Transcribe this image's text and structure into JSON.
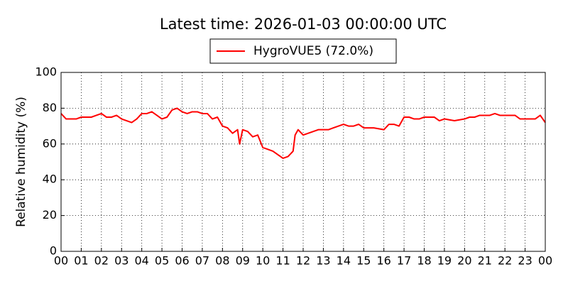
{
  "chart_data": {
    "type": "line",
    "title": "Latest time: 2026-01-03 00:00:00 UTC",
    "y_label": "Relative humidity (%)",
    "legend": "upper center",
    "grid": true,
    "xlim": [
      0,
      24
    ],
    "ylim": [
      0,
      100
    ],
    "yticks": [
      0,
      20,
      40,
      60,
      80,
      100
    ],
    "xticks": [
      {
        "value": 0,
        "label": "00"
      },
      {
        "value": 1,
        "label": "01"
      },
      {
        "value": 2,
        "label": "02"
      },
      {
        "value": 3,
        "label": "03"
      },
      {
        "value": 4,
        "label": "04"
      },
      {
        "value": 5,
        "label": "05"
      },
      {
        "value": 6,
        "label": "06"
      },
      {
        "value": 7,
        "label": "07"
      },
      {
        "value": 8,
        "label": "08"
      },
      {
        "value": 9,
        "label": "09"
      },
      {
        "value": 10,
        "label": "10"
      },
      {
        "value": 11,
        "label": "11"
      },
      {
        "value": 12,
        "label": "12"
      },
      {
        "value": 13,
        "label": "13"
      },
      {
        "value": 14,
        "label": "14"
      },
      {
        "value": 15,
        "label": "15"
      },
      {
        "value": 16,
        "label": "16"
      },
      {
        "value": 17,
        "label": "17"
      },
      {
        "value": 18,
        "label": "18"
      },
      {
        "value": 19,
        "label": "19"
      },
      {
        "value": 20,
        "label": "20"
      },
      {
        "value": 21,
        "label": "21"
      },
      {
        "value": 22,
        "label": "22"
      },
      {
        "value": 23,
        "label": "23"
      },
      {
        "value": 24,
        "label": "00"
      }
    ],
    "x": [
      0,
      0.25,
      0.5,
      0.75,
      1,
      1.25,
      1.5,
      1.75,
      2,
      2.25,
      2.5,
      2.75,
      3,
      3.25,
      3.5,
      3.75,
      4,
      4.25,
      4.5,
      4.75,
      5,
      5.25,
      5.5,
      5.75,
      6,
      6.25,
      6.5,
      6.75,
      7,
      7.25,
      7.5,
      7.75,
      8,
      8.25,
      8.5,
      8.75,
      8.85,
      9,
      9.25,
      9.5,
      9.75,
      10,
      10.25,
      10.5,
      10.75,
      11,
      11.25,
      11.5,
      11.6,
      11.75,
      12,
      12.25,
      12.5,
      12.75,
      13,
      13.25,
      13.5,
      13.75,
      14,
      14.25,
      14.5,
      14.75,
      15,
      15.5,
      16,
      16.25,
      16.5,
      16.75,
      17,
      17.25,
      17.5,
      17.75,
      18,
      18.5,
      18.75,
      19,
      19.5,
      20,
      20.25,
      20.5,
      20.75,
      21,
      21.25,
      21.5,
      21.75,
      22,
      22.25,
      22.5,
      22.75,
      23,
      23.5,
      23.75,
      24
    ],
    "series": [
      {
        "name": "HygroVUE5 (72.0%)",
        "color": "#ff0000",
        "values": [
          77,
          74,
          74,
          74,
          75,
          75,
          75,
          76,
          77,
          75,
          75,
          76,
          74,
          73,
          72,
          74,
          77,
          77,
          78,
          76,
          74,
          75,
          79,
          80,
          78,
          77,
          78,
          78,
          77,
          77,
          74,
          75,
          70,
          69,
          66,
          68,
          60,
          68,
          67,
          64,
          65,
          58,
          57,
          56,
          54,
          52,
          53,
          56,
          65,
          68,
          65,
          66,
          67,
          68,
          68,
          68,
          69,
          70,
          71,
          70,
          70,
          71,
          69,
          69,
          68,
          71,
          71,
          70,
          75,
          75,
          74,
          74,
          75,
          75,
          73,
          74,
          73,
          74,
          75,
          75,
          76,
          76,
          76,
          77,
          76,
          76,
          76,
          76,
          74,
          74,
          74,
          76,
          72
        ]
      }
    ]
  }
}
